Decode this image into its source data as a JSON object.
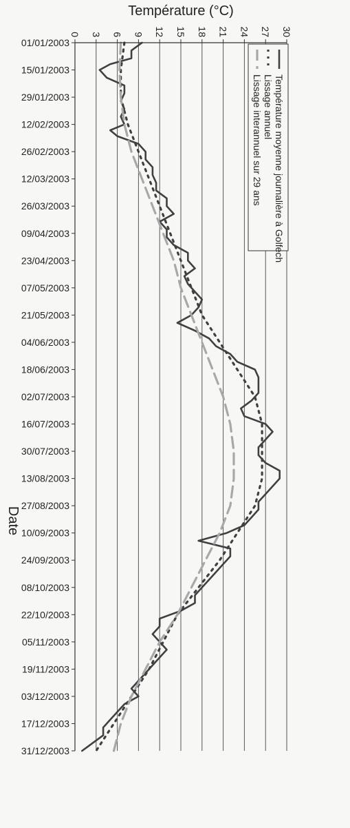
{
  "chart_data": {
    "type": "line",
    "xlabel": "Date",
    "ylabel": "Température (°C)",
    "ylim": [
      0,
      30
    ],
    "y_ticks": [
      "0",
      "3",
      "6",
      "9",
      "12",
      "15",
      "18",
      "21",
      "24",
      "27",
      "30"
    ],
    "x_ticks": [
      "01/01/2003",
      "15/01/2003",
      "29/01/2003",
      "12/02/2003",
      "26/02/2003",
      "12/03/2003",
      "26/03/2003",
      "09/04/2003",
      "23/04/2003",
      "07/05/2003",
      "21/05/2003",
      "04/06/2003",
      "18/06/2003",
      "02/07/2003",
      "16/07/2003",
      "30/07/2003",
      "13/08/2003",
      "27/08/2003",
      "10/09/2003",
      "24/09/2003",
      "08/10/2003",
      "22/10/2003",
      "05/11/2003",
      "19/11/2003",
      "03/12/2003",
      "17/12/2003",
      "31/12/2003"
    ],
    "grid": true,
    "legend_placement": "top-left",
    "series": [
      {
        "name": "Température moyenne journalière à Golfech",
        "style": "solid",
        "color": "#404040",
        "points": [
          [
            "01/01/2003",
            9.5
          ],
          [
            "05/01/2003",
            8.0
          ],
          [
            "09/01/2003",
            8.0
          ],
          [
            "12/01/2003",
            5.0
          ],
          [
            "15/01/2003",
            3.5
          ],
          [
            "19/01/2003",
            4.5
          ],
          [
            "23/01/2003",
            7.0
          ],
          [
            "27/01/2003",
            7.0
          ],
          [
            "31/01/2003",
            6.5
          ],
          [
            "04/02/2003",
            7.0
          ],
          [
            "08/02/2003",
            6.5
          ],
          [
            "12/02/2003",
            7.0
          ],
          [
            "15/02/2003",
            5.0
          ],
          [
            "18/02/2003",
            6.0
          ],
          [
            "22/02/2003",
            9.0
          ],
          [
            "26/02/2003",
            10.0
          ],
          [
            "02/03/2003",
            10.0
          ],
          [
            "06/03/2003",
            11.0
          ],
          [
            "10/03/2003",
            11.0
          ],
          [
            "14/03/2003",
            11.5
          ],
          [
            "18/03/2003",
            11.5
          ],
          [
            "22/03/2003",
            13.0
          ],
          [
            "26/03/2003",
            13.0
          ],
          [
            "30/03/2003",
            14.0
          ],
          [
            "03/04/2003",
            12.0
          ],
          [
            "07/04/2003",
            13.0
          ],
          [
            "11/04/2003",
            13.0
          ],
          [
            "15/04/2003",
            14.0
          ],
          [
            "19/04/2003",
            16.0
          ],
          [
            "23/04/2003",
            16.0
          ],
          [
            "27/04/2003",
            17.0
          ],
          [
            "01/05/2003",
            15.5
          ],
          [
            "05/05/2003",
            16.0
          ],
          [
            "09/05/2003",
            17.0
          ],
          [
            "13/05/2003",
            18.0
          ],
          [
            "17/05/2003",
            17.5
          ],
          [
            "21/05/2003",
            16.5
          ],
          [
            "25/05/2003",
            14.5
          ],
          [
            "29/05/2003",
            17.0
          ],
          [
            "02/06/2003",
            19.0
          ],
          [
            "06/06/2003",
            20.0
          ],
          [
            "10/06/2003",
            22.0
          ],
          [
            "14/06/2003",
            23.0
          ],
          [
            "18/06/2003",
            25.5
          ],
          [
            "22/06/2003",
            26.0
          ],
          [
            "26/06/2003",
            26.0
          ],
          [
            "30/06/2003",
            26.0
          ],
          [
            "04/07/2003",
            25.0
          ],
          [
            "08/07/2003",
            23.5
          ],
          [
            "12/07/2003",
            24.0
          ],
          [
            "16/07/2003",
            27.0
          ],
          [
            "20/07/2003",
            28.0
          ],
          [
            "24/07/2003",
            27.0
          ],
          [
            "28/07/2003",
            26.0
          ],
          [
            "01/08/2003",
            26.0
          ],
          [
            "05/08/2003",
            27.0
          ],
          [
            "09/08/2003",
            29.0
          ],
          [
            "13/08/2003",
            29.0
          ],
          [
            "17/08/2003",
            28.0
          ],
          [
            "21/08/2003",
            27.0
          ],
          [
            "25/08/2003",
            26.0
          ],
          [
            "29/08/2003",
            26.0
          ],
          [
            "02/09/2003",
            25.0
          ],
          [
            "06/09/2003",
            24.0
          ],
          [
            "10/09/2003",
            21.5
          ],
          [
            "14/09/2003",
            17.5
          ],
          [
            "18/09/2003",
            22.0
          ],
          [
            "22/09/2003",
            22.0
          ],
          [
            "26/09/2003",
            21.0
          ],
          [
            "30/09/2003",
            20.0
          ],
          [
            "04/10/2003",
            19.0
          ],
          [
            "08/10/2003",
            18.0
          ],
          [
            "12/10/2003",
            17.0
          ],
          [
            "16/10/2003",
            17.0
          ],
          [
            "20/10/2003",
            15.0
          ],
          [
            "24/10/2003",
            12.0
          ],
          [
            "28/10/2003",
            12.0
          ],
          [
            "01/11/2003",
            11.0
          ],
          [
            "05/11/2003",
            12.0
          ],
          [
            "09/11/2003",
            13.0
          ],
          [
            "13/11/2003",
            12.0
          ],
          [
            "17/11/2003",
            11.0
          ],
          [
            "21/11/2003",
            10.0
          ],
          [
            "25/11/2003",
            9.0
          ],
          [
            "29/11/2003",
            8.0
          ],
          [
            "03/12/2003",
            9.0
          ],
          [
            "07/12/2003",
            7.0
          ],
          [
            "11/12/2003",
            6.0
          ],
          [
            "15/12/2003",
            5.0
          ],
          [
            "19/12/2003",
            4.0
          ],
          [
            "23/12/2003",
            4.0
          ],
          [
            "27/12/2003",
            2.5
          ],
          [
            "31/12/2003",
            1.0
          ]
        ]
      },
      {
        "name": "Lissage annuel",
        "style": "dotted",
        "color": "#404040",
        "points": [
          [
            "01/01/2003",
            7.0
          ],
          [
            "15/01/2003",
            6.5
          ],
          [
            "29/01/2003",
            6.5
          ],
          [
            "12/02/2003",
            7.5
          ],
          [
            "26/02/2003",
            9.0
          ],
          [
            "12/03/2003",
            10.5
          ],
          [
            "26/03/2003",
            12.0
          ],
          [
            "09/04/2003",
            13.5
          ],
          [
            "23/04/2003",
            15.0
          ],
          [
            "07/05/2003",
            16.5
          ],
          [
            "21/05/2003",
            18.0
          ],
          [
            "04/06/2003",
            20.5
          ],
          [
            "18/06/2003",
            23.0
          ],
          [
            "02/07/2003",
            25.5
          ],
          [
            "16/07/2003",
            26.5
          ],
          [
            "30/07/2003",
            26.5
          ],
          [
            "13/08/2003",
            26.5
          ],
          [
            "27/08/2003",
            25.5
          ],
          [
            "10/09/2003",
            23.0
          ],
          [
            "24/09/2003",
            20.5
          ],
          [
            "08/10/2003",
            17.5
          ],
          [
            "22/10/2003",
            14.5
          ],
          [
            "05/11/2003",
            12.5
          ],
          [
            "19/11/2003",
            10.5
          ],
          [
            "03/12/2003",
            8.0
          ],
          [
            "17/12/2003",
            5.5
          ],
          [
            "31/12/2003",
            3.0
          ]
        ]
      },
      {
        "name": "Lissage interannuel sur 29 ans",
        "style": "dashed",
        "color": "#a8a8a8",
        "points": [
          [
            "01/01/2003",
            6.5
          ],
          [
            "15/01/2003",
            6.3
          ],
          [
            "29/01/2003",
            6.5
          ],
          [
            "12/02/2003",
            7.0
          ],
          [
            "26/02/2003",
            8.0
          ],
          [
            "12/03/2003",
            9.5
          ],
          [
            "26/03/2003",
            11.0
          ],
          [
            "09/04/2003",
            12.5
          ],
          [
            "23/04/2003",
            14.0
          ],
          [
            "07/05/2003",
            15.0
          ],
          [
            "21/05/2003",
            16.5
          ],
          [
            "04/06/2003",
            18.0
          ],
          [
            "18/06/2003",
            19.5
          ],
          [
            "02/07/2003",
            21.0
          ],
          [
            "16/07/2003",
            22.0
          ],
          [
            "30/07/2003",
            22.5
          ],
          [
            "13/08/2003",
            22.5
          ],
          [
            "27/08/2003",
            22.0
          ],
          [
            "10/09/2003",
            20.5
          ],
          [
            "24/09/2003",
            18.5
          ],
          [
            "08/10/2003",
            16.5
          ],
          [
            "22/10/2003",
            14.5
          ],
          [
            "05/11/2003",
            12.0
          ],
          [
            "19/11/2003",
            10.0
          ],
          [
            "03/12/2003",
            8.0
          ],
          [
            "17/12/2003",
            6.5
          ],
          [
            "31/12/2003",
            5.5
          ]
        ]
      }
    ]
  }
}
